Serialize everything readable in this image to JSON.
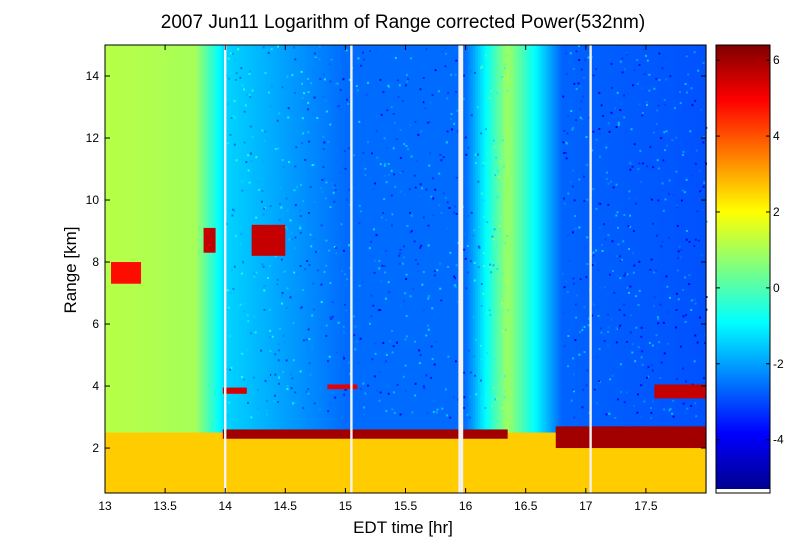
{
  "chart_data": {
    "type": "heatmap",
    "title": "2007 Jun11  Logarithm of Range corrected Power(532nm)",
    "xlabel": "EDT time [hr]",
    "ylabel": "Range [km]",
    "xlim": [
      13,
      18
    ],
    "ylim": [
      0.55,
      15
    ],
    "x_ticks": [
      "13",
      "13.5",
      "14",
      "14.5",
      "15",
      "15.5",
      "16",
      "16.5",
      "17",
      "17.5"
    ],
    "x_tick_values": [
      13,
      13.5,
      14,
      14.5,
      15,
      15.5,
      16,
      16.5,
      17,
      17.5
    ],
    "y_ticks": [
      "2",
      "4",
      "6",
      "8",
      "10",
      "12",
      "14"
    ],
    "y_tick_values": [
      2,
      4,
      6,
      8,
      10,
      12,
      14
    ],
    "colorbar": {
      "range": [
        -5.3,
        6.4
      ],
      "ticks": [
        "-4",
        "-2",
        "0",
        "2",
        "4",
        "6"
      ],
      "tick_values": [
        -4,
        -2,
        0,
        2,
        4,
        6
      ],
      "colormap": "jet"
    },
    "grid": false,
    "data_gaps_hr": [
      [
        13.99,
        14.01
      ],
      [
        15.04,
        15.06
      ],
      [
        15.94,
        15.98
      ],
      [
        17.03,
        17.05
      ]
    ],
    "background_log_power_by_time": [
      {
        "t": 13.0,
        "value": 1.2
      },
      {
        "t": 13.75,
        "value": 1.0
      },
      {
        "t": 14.0,
        "value": -1.4
      },
      {
        "t": 15.0,
        "value": -2.6
      },
      {
        "t": 16.0,
        "value": -2.6
      },
      {
        "t": 16.35,
        "value": 0.9
      },
      {
        "t": 16.8,
        "value": -2.7
      },
      {
        "t": 18.0,
        "value": -2.9
      }
    ],
    "cloud_layers": [
      {
        "t_start": 13.05,
        "t_end": 13.3,
        "range_km": [
          7.3,
          8.0
        ],
        "value": 4.8
      },
      {
        "t_start": 13.82,
        "t_end": 13.92,
        "range_km": [
          8.3,
          9.1
        ],
        "value": 5.6
      },
      {
        "t_start": 14.22,
        "t_end": 14.5,
        "range_km": [
          8.2,
          9.2
        ],
        "value": 5.6
      },
      {
        "t_start": 13.98,
        "t_end": 16.35,
        "range_km": [
          2.3,
          2.6
        ],
        "value": 6.0
      },
      {
        "t_start": 16.75,
        "t_end": 18.0,
        "range_km": [
          2.0,
          2.7
        ],
        "value": 6.0
      },
      {
        "t_start": 13.98,
        "t_end": 14.18,
        "range_km": [
          3.75,
          3.95
        ],
        "value": 5.4
      },
      {
        "t_start": 14.85,
        "t_end": 15.1,
        "range_km": [
          3.9,
          4.05
        ],
        "value": 5.2
      },
      {
        "t_start": 17.57,
        "t_end": 18.0,
        "range_km": [
          3.6,
          4.05
        ],
        "value": 5.6
      }
    ],
    "boundary_layer": {
      "range_km": [
        0.55,
        2.5
      ],
      "value": 2.6
    }
  }
}
